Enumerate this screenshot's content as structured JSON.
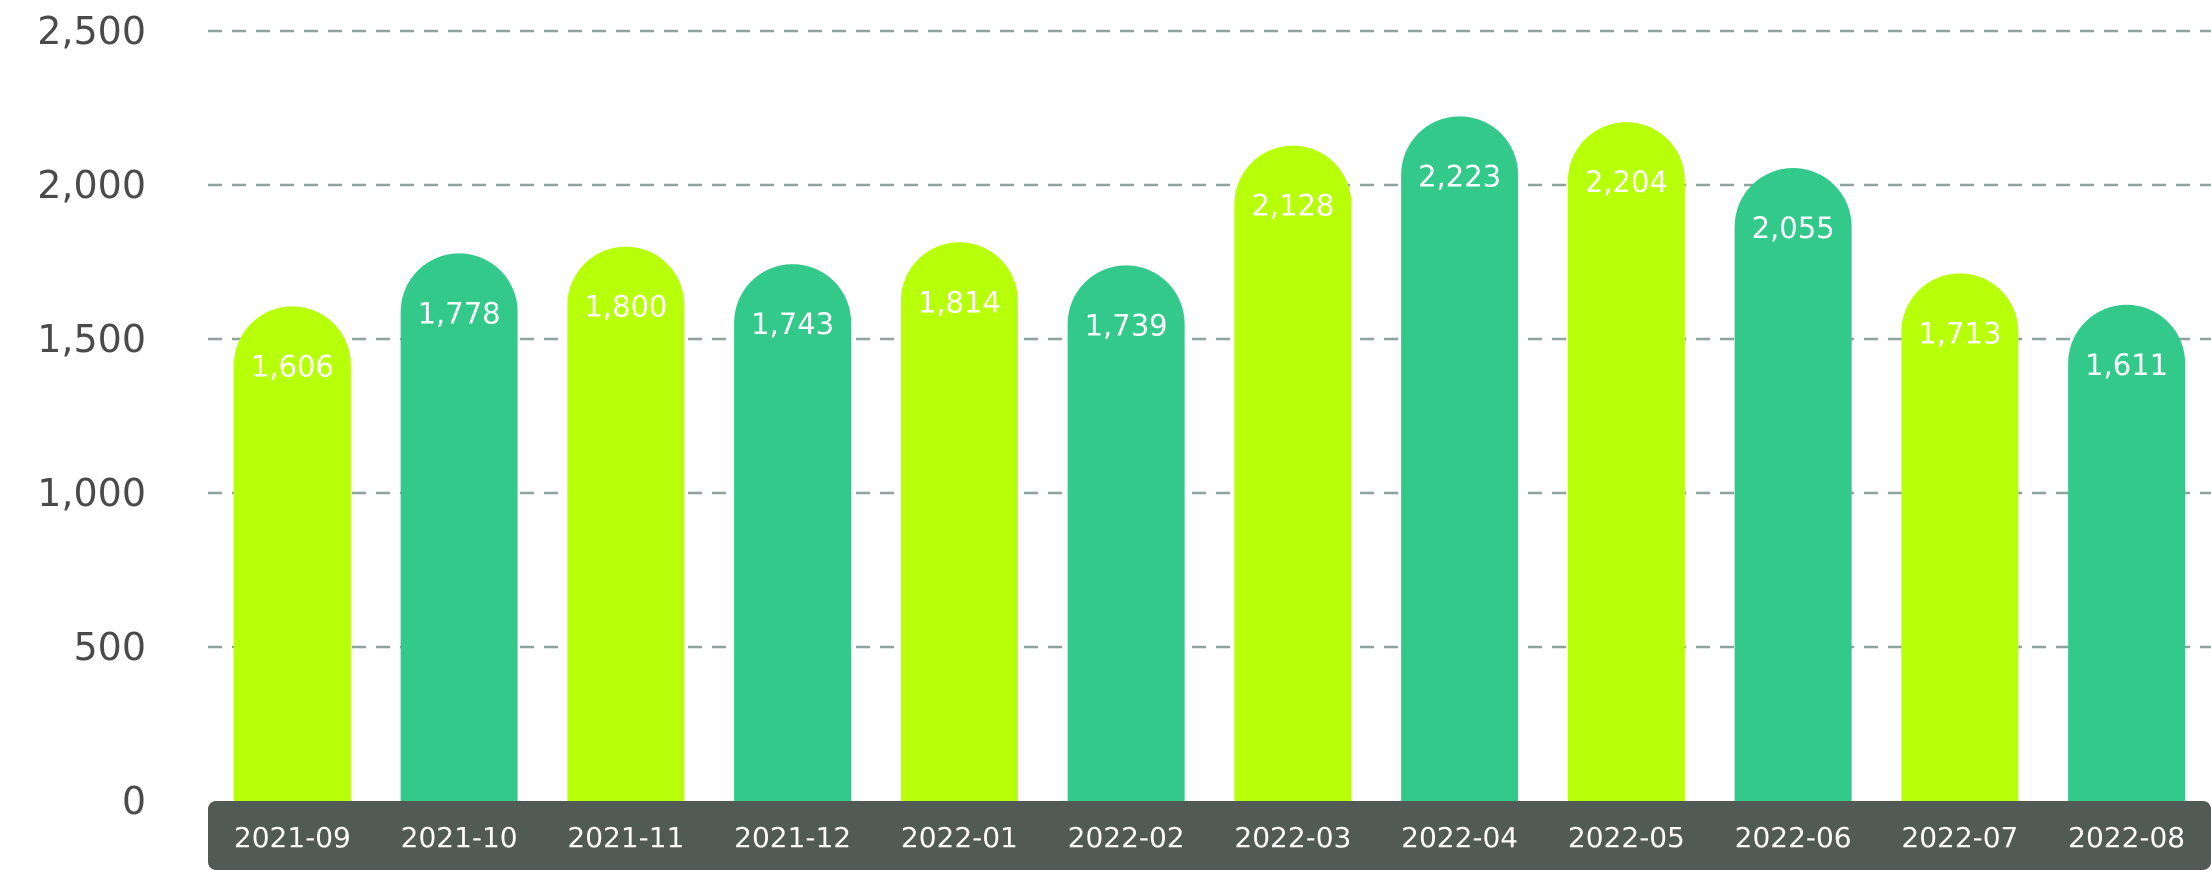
{
  "chart_data": {
    "type": "bar",
    "categories": [
      "2021-09",
      "2021-10",
      "2021-11",
      "2021-12",
      "2022-01",
      "2022-02",
      "2022-03",
      "2022-04",
      "2022-05",
      "2022-06",
      "2022-07",
      "2022-08"
    ],
    "values": [
      1606,
      1778,
      1800,
      1743,
      1814,
      1739,
      2128,
      2223,
      2204,
      2055,
      1713,
      1611
    ],
    "value_labels": [
      "1,606",
      "1,778",
      "1,800",
      "1,743",
      "1,814",
      "1,739",
      "2,128",
      "2,223",
      "2,204",
      "2,055",
      "1,713",
      "1,611"
    ],
    "ylim": [
      0,
      2500
    ],
    "yticks": [
      0,
      500,
      1000,
      1500,
      2000,
      2500
    ],
    "ytick_labels": [
      "0",
      "500",
      "1,000",
      "1,500",
      "2,000",
      "2,500"
    ],
    "grid": true,
    "title": "",
    "xlabel": "",
    "ylabel": "",
    "colors": {
      "bar_a": "#b8ff0a",
      "bar_b": "#33c98a",
      "grid": "#8ea3a0",
      "axis_band": "#525a55",
      "tick_text": "#4a4a4a",
      "x_label_text": "#ffffff",
      "data_label_text": "#ffffff"
    }
  }
}
